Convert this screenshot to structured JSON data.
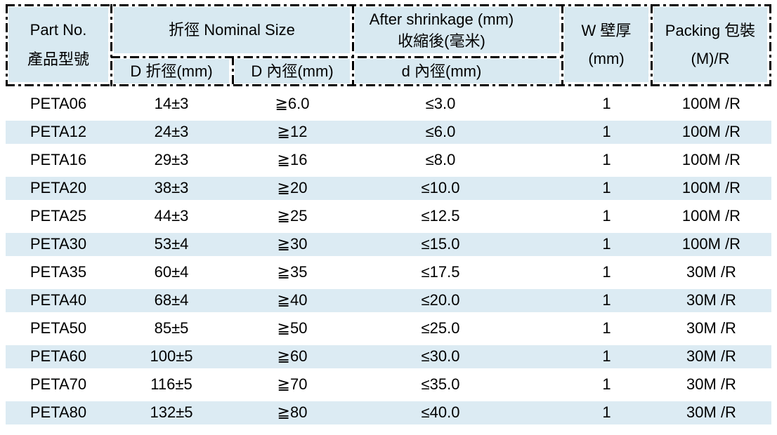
{
  "colors": {
    "header_fill": "#d8e9f1",
    "row_stripe": "#dcebf3",
    "border": "#000000",
    "text": "#000000",
    "background": "#ffffff"
  },
  "header": {
    "part_line1": "Part No.",
    "part_line2": "產品型號",
    "nominal": "折徑 Nominal Size",
    "sub_d_fold": "D 折徑(mm)",
    "sub_d_inner": "D 內徑(mm)",
    "shrink_line1": "After shrinkage (mm)",
    "shrink_line2": "收縮後(毫米)",
    "sub_d_small": "d 內徑(mm)",
    "w_line1": "W 壁厚",
    "w_line2": "(mm)",
    "pack_line1": "Packing 包裝",
    "pack_line2": "(M)/R"
  },
  "rows": [
    {
      "part": "PETA06",
      "d_fold": "14±3",
      "d_inner": "≧6.0",
      "d_small": "≤3.0",
      "w": "1",
      "pack": "100M /R"
    },
    {
      "part": "PETA12",
      "d_fold": "24±3",
      "d_inner": "≧12",
      "d_small": "≤6.0",
      "w": "1",
      "pack": "100M /R"
    },
    {
      "part": "PETA16",
      "d_fold": "29±3",
      "d_inner": "≧16",
      "d_small": "≤8.0",
      "w": "1",
      "pack": "100M /R"
    },
    {
      "part": "PETA20",
      "d_fold": "38±3",
      "d_inner": "≧20",
      "d_small": "≤10.0",
      "w": "1",
      "pack": "100M /R"
    },
    {
      "part": "PETA25",
      "d_fold": "44±3",
      "d_inner": "≧25",
      "d_small": "≤12.5",
      "w": "1",
      "pack": "100M /R"
    },
    {
      "part": "PETA30",
      "d_fold": "53±4",
      "d_inner": "≧30",
      "d_small": "≤15.0",
      "w": "1",
      "pack": "100M /R"
    },
    {
      "part": "PETA35",
      "d_fold": "60±4",
      "d_inner": "≧35",
      "d_small": "≤17.5",
      "w": "1",
      "pack": "30M /R"
    },
    {
      "part": "PETA40",
      "d_fold": "68±4",
      "d_inner": "≧40",
      "d_small": "≤20.0",
      "w": "1",
      "pack": "30M /R"
    },
    {
      "part": "PETA50",
      "d_fold": "85±5",
      "d_inner": "≧50",
      "d_small": "≤25.0",
      "w": "1",
      "pack": "30M /R"
    },
    {
      "part": "PETA60",
      "d_fold": "100±5",
      "d_inner": "≧60",
      "d_small": "≤30.0",
      "w": "1",
      "pack": "30M /R"
    },
    {
      "part": "PETA70",
      "d_fold": "116±5",
      "d_inner": "≧70",
      "d_small": "≤35.0",
      "w": "1",
      "pack": "30M /R"
    },
    {
      "part": "PETA80",
      "d_fold": "132±5",
      "d_inner": "≧80",
      "d_small": "≤40.0",
      "w": "1",
      "pack": "30M /R"
    }
  ]
}
